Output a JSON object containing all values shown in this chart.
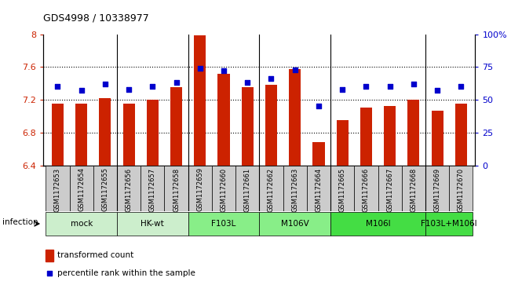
{
  "title": "GDS4998 / 10338977",
  "samples": [
    "GSM1172653",
    "GSM1172654",
    "GSM1172655",
    "GSM1172656",
    "GSM1172657",
    "GSM1172658",
    "GSM1172659",
    "GSM1172660",
    "GSM1172661",
    "GSM1172662",
    "GSM1172663",
    "GSM1172664",
    "GSM1172665",
    "GSM1172666",
    "GSM1172667",
    "GSM1172668",
    "GSM1172669",
    "GSM1172670"
  ],
  "bar_values": [
    7.15,
    7.15,
    7.22,
    7.15,
    7.2,
    7.35,
    7.99,
    7.52,
    7.35,
    7.38,
    7.57,
    6.68,
    6.95,
    7.1,
    7.12,
    7.2,
    7.07,
    7.15
  ],
  "dot_values": [
    60,
    57,
    62,
    58,
    60,
    63,
    74,
    72,
    63,
    66,
    73,
    45,
    58,
    60,
    60,
    62,
    57,
    60
  ],
  "bar_base": 6.4,
  "ylim_left": [
    6.4,
    8.0
  ],
  "ylim_right": [
    0,
    100
  ],
  "yticks_left": [
    6.4,
    6.8,
    7.2,
    7.6,
    8.0
  ],
  "ytick_labels_left": [
    "6.4",
    "6.8",
    "7.2",
    "7.6",
    "8"
  ],
  "yticks_right": [
    0,
    25,
    50,
    75,
    100
  ],
  "ytick_labels_right": [
    "0",
    "25",
    "50",
    "75",
    "100%"
  ],
  "hlines": [
    6.8,
    7.2,
    7.6
  ],
  "group_configs": [
    {
      "label": "mock",
      "start": 0,
      "end": 2,
      "color": "#cceecc"
    },
    {
      "label": "HK-wt",
      "start": 3,
      "end": 5,
      "color": "#cceecc"
    },
    {
      "label": "F103L",
      "start": 6,
      "end": 8,
      "color": "#88ee88"
    },
    {
      "label": "M106V",
      "start": 9,
      "end": 11,
      "color": "#88ee88"
    },
    {
      "label": "M106I",
      "start": 12,
      "end": 15,
      "color": "#44dd44"
    },
    {
      "label": "F103L+M106I",
      "start": 16,
      "end": 17,
      "color": "#44dd44"
    }
  ],
  "bar_color": "#cc2200",
  "dot_color": "#0000cc",
  "bar_width": 0.5,
  "infection_label": "infection",
  "legend_bar_label": "transformed count",
  "legend_dot_label": "percentile rank within the sample",
  "group_sep_positions": [
    2.5,
    5.5,
    8.5,
    11.5,
    15.5
  ],
  "xtick_bg_color": "#cccccc"
}
